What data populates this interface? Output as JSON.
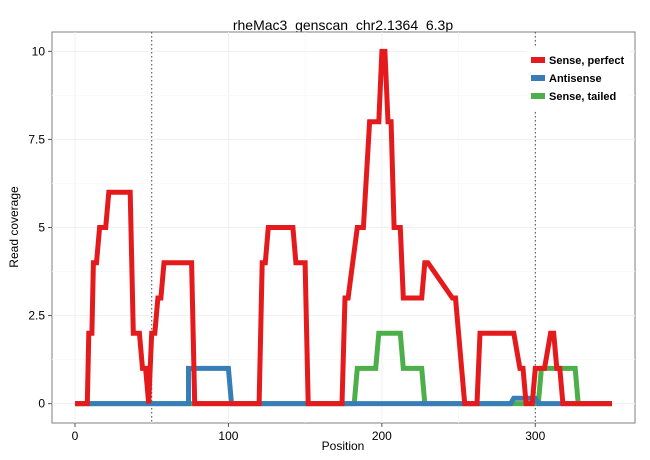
{
  "chart_data": {
    "type": "line",
    "title": "rheMac3_genscan_chr2.1364_6.3p",
    "xlabel": "Position",
    "ylabel": "Read coverage",
    "xlim": [
      -15,
      365
    ],
    "ylim": [
      -0.55,
      10.55
    ],
    "x_ticks": [
      0,
      100,
      200,
      300
    ],
    "x_tick_labels": [
      "0",
      "100",
      "200",
      "300"
    ],
    "y_ticks": [
      0,
      2.5,
      5,
      7.5,
      10
    ],
    "y_tick_labels": [
      "0",
      "2.5",
      "5",
      "7.5",
      "10"
    ],
    "vlines": [
      50,
      300
    ],
    "grid": true,
    "legend_position": "top-right",
    "series": [
      {
        "name": "Sense, perfect",
        "color": "#E41A1C",
        "x": [
          0,
          8,
          9,
          11,
          12,
          14,
          16,
          20,
          22,
          36,
          38,
          42,
          44,
          46,
          48,
          50,
          52,
          54,
          56,
          58,
          60,
          62,
          64,
          66,
          76,
          78,
          84,
          86,
          88,
          120,
          122,
          124,
          126,
          130,
          142,
          144,
          150,
          152,
          174,
          176,
          178,
          184,
          186,
          188,
          192,
          198,
          200,
          202,
          204,
          206,
          208,
          212,
          214,
          218,
          222,
          224,
          226,
          228,
          230,
          246,
          248,
          254,
          256,
          258,
          262,
          264,
          268,
          284,
          286,
          290,
          292,
          294,
          298,
          300,
          302,
          304,
          306,
          310,
          312,
          314,
          316,
          318,
          320,
          322,
          326,
          328,
          350
        ],
        "y": [
          0,
          0,
          2,
          2,
          4,
          4,
          5,
          5,
          6,
          6,
          2,
          2,
          1,
          1,
          0,
          2,
          2,
          3,
          3,
          4,
          4,
          4,
          4,
          4,
          4,
          0,
          0,
          0,
          0,
          0,
          4,
          4,
          5,
          5,
          5,
          4,
          4,
          0,
          0,
          3,
          3,
          5,
          5,
          5,
          8,
          8,
          10,
          10,
          8,
          8,
          5,
          5,
          3,
          3,
          3,
          3,
          3,
          4,
          4,
          3,
          3,
          0,
          0,
          0,
          0,
          2,
          2,
          2,
          2,
          1,
          1,
          0,
          0,
          1,
          1,
          1,
          1,
          2,
          2,
          1,
          1,
          0,
          0,
          0,
          0,
          0,
          0
        ]
      },
      {
        "name": "Antisense",
        "color": "#377EB8",
        "x": [
          0,
          74,
          74,
          100,
          102,
          284,
          286,
          300,
          302,
          350
        ],
        "y": [
          0,
          0,
          1,
          1,
          0,
          0,
          0.15,
          0.15,
          0,
          0
        ]
      },
      {
        "name": "Sense, tailed",
        "color": "#4DAF4A",
        "x": [
          0,
          182,
          184,
          196,
          198,
          212,
          214,
          226,
          228,
          302,
          304,
          326,
          328,
          350
        ],
        "y": [
          0,
          0,
          1,
          1,
          2,
          2,
          1,
          1,
          0,
          0,
          1,
          1,
          0,
          0
        ]
      }
    ]
  }
}
